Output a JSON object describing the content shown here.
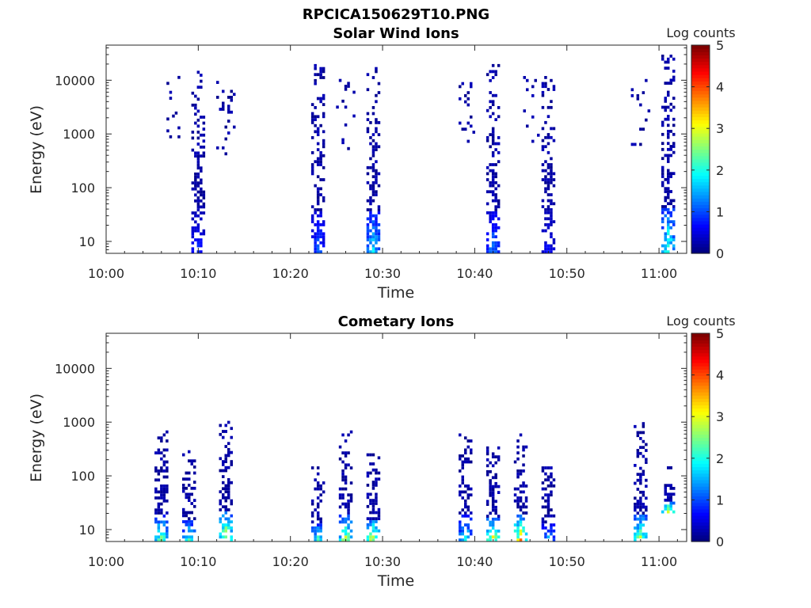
{
  "title": "RPCICA150629T10.PNG",
  "chart_data": [
    {
      "type": "heatmap",
      "title": "Solar Wind Ions",
      "xlabel": "Time",
      "ylabel": "Energy (eV)",
      "x_ticks": [
        "10:00",
        "10:10",
        "10:20",
        "10:30",
        "10:40",
        "10:50",
        "11:00"
      ],
      "x_range_minutes_after_10_00": [
        0,
        63
      ],
      "y_scale": "log",
      "y_ticks": [
        "10",
        "100",
        "1000",
        "10000"
      ],
      "y_range_eV": [
        6,
        45000
      ],
      "colorbar": {
        "label": "Log counts",
        "ticks": [
          "0",
          "1",
          "2",
          "3",
          "4",
          "5"
        ],
        "range": [
          0,
          5
        ],
        "colormap": "jet"
      },
      "bursts": [
        {
          "time": "10:07",
          "energy_eV": [
            300,
            12000
          ],
          "peak_log_counts": 0.2,
          "density": "sparse"
        },
        {
          "time": "10:10",
          "energy_eV": [
            6,
            15000
          ],
          "peak_log_counts": 1.0,
          "density": "dense"
        },
        {
          "time": "10:13",
          "energy_eV": [
            400,
            11000
          ],
          "peak_log_counts": 0.2,
          "density": "sparse"
        },
        {
          "time": "10:23",
          "energy_eV": [
            6,
            20000
          ],
          "peak_log_counts": 1.3,
          "density": "dense"
        },
        {
          "time": "10:26",
          "energy_eV": [
            500,
            12000
          ],
          "peak_log_counts": 0.2,
          "density": "sparse"
        },
        {
          "time": "10:29",
          "energy_eV": [
            6,
            20000
          ],
          "peak_log_counts": 2.2,
          "density": "dense"
        },
        {
          "time": "10:39",
          "energy_eV": [
            600,
            12000
          ],
          "peak_log_counts": 0.2,
          "density": "sparse"
        },
        {
          "time": "10:42",
          "energy_eV": [
            6,
            20000
          ],
          "peak_log_counts": 1.5,
          "density": "dense"
        },
        {
          "time": "10:46",
          "energy_eV": [
            600,
            12000
          ],
          "peak_log_counts": 0.2,
          "density": "sparse"
        },
        {
          "time": "10:48",
          "energy_eV": [
            6,
            12000
          ],
          "peak_log_counts": 0.8,
          "density": "dense"
        },
        {
          "time": "10:58",
          "energy_eV": [
            600,
            12000
          ],
          "peak_log_counts": 0.2,
          "density": "sparse"
        },
        {
          "time": "11:01",
          "energy_eV": [
            6,
            30000
          ],
          "peak_log_counts": 2.8,
          "density": "dense"
        }
      ]
    },
    {
      "type": "heatmap",
      "title": "Cometary Ions",
      "xlabel": "Time",
      "ylabel": "Energy (eV)",
      "x_ticks": [
        "10:00",
        "10:10",
        "10:20",
        "10:30",
        "10:40",
        "10:50",
        "11:00"
      ],
      "x_range_minutes_after_10_00": [
        0,
        63
      ],
      "y_scale": "log",
      "y_ticks": [
        "10",
        "100",
        "1000",
        "10000"
      ],
      "y_range_eV": [
        6,
        45000
      ],
      "colorbar": {
        "label": "Log counts",
        "ticks": [
          "0",
          "1",
          "2",
          "3",
          "4",
          "5"
        ],
        "range": [
          0,
          5
        ],
        "colormap": "jet"
      },
      "bursts": [
        {
          "time": "10:06",
          "energy_eV": [
            6,
            700
          ],
          "peak_log_counts": 2.9,
          "density": "dense"
        },
        {
          "time": "10:09",
          "energy_eV": [
            6,
            300
          ],
          "peak_log_counts": 2.5,
          "density": "dense"
        },
        {
          "time": "10:13",
          "energy_eV": [
            6,
            1200
          ],
          "peak_log_counts": 3.6,
          "density": "dense"
        },
        {
          "time": "10:23",
          "energy_eV": [
            6,
            150
          ],
          "peak_log_counts": 2.6,
          "density": "dense"
        },
        {
          "time": "10:26",
          "energy_eV": [
            6,
            700
          ],
          "peak_log_counts": 3.3,
          "density": "dense"
        },
        {
          "time": "10:29",
          "energy_eV": [
            6,
            300
          ],
          "peak_log_counts": 3.6,
          "density": "dense"
        },
        {
          "time": "10:39",
          "energy_eV": [
            6,
            700
          ],
          "peak_log_counts": 2.3,
          "density": "dense"
        },
        {
          "time": "10:42",
          "energy_eV": [
            6,
            400
          ],
          "peak_log_counts": 3.6,
          "density": "dense"
        },
        {
          "time": "10:45",
          "energy_eV": [
            6,
            700
          ],
          "peak_log_counts": 4.0,
          "density": "dense"
        },
        {
          "time": "10:48",
          "energy_eV": [
            6,
            150
          ],
          "peak_log_counts": 1.8,
          "density": "dense"
        },
        {
          "time": "10:58",
          "energy_eV": [
            6,
            1000
          ],
          "peak_log_counts": 3.2,
          "density": "dense"
        },
        {
          "time": "11:01",
          "energy_eV": [
            20,
            150
          ],
          "peak_log_counts": 3.6,
          "density": "dense"
        }
      ]
    }
  ]
}
